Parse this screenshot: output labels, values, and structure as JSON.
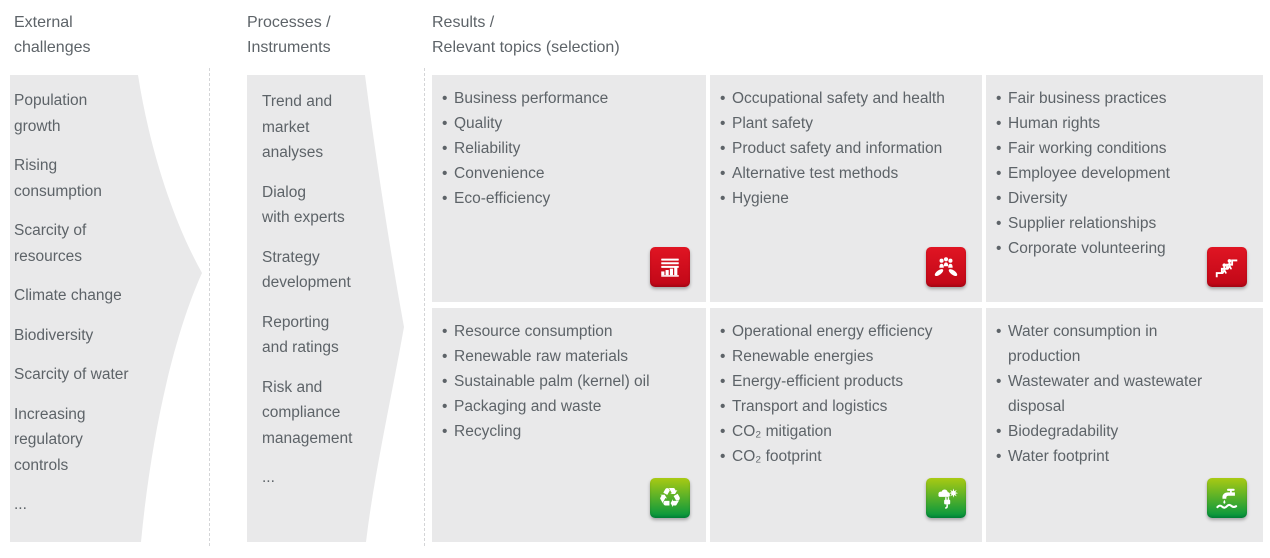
{
  "headers": {
    "external": "External\nchallenges",
    "processes": "Processes /\nInstruments",
    "results": "Results /\nRelevant topics (selection)"
  },
  "external_challenges": {
    "items": [
      "Population\ngrowth",
      "Rising\nconsumption",
      "Scarcity of\nresources",
      "Climate change",
      "Biodiversity",
      "Scarcity of water",
      "Increasing\nregulatory\ncontrols",
      "..."
    ]
  },
  "processes_instruments": {
    "items": [
      "Trend and\nmarket\nanalyses",
      "Dialog\nwith experts",
      "Strategy\ndevelopment",
      "Reporting\nand ratings",
      "Risk and\ncompliance\nmanagement",
      "..."
    ]
  },
  "boxes": [
    {
      "id": "products-performance",
      "icon": "bar-chart-icon",
      "color": "red",
      "items": [
        "Business performance",
        "Quality",
        "Reliability",
        "Convenience",
        "Eco-efficiency"
      ]
    },
    {
      "id": "safety-health",
      "icon": "hands-holding-people-icon",
      "color": "red",
      "items": [
        "Occupational safety and health",
        "Plant safety",
        "Product safety and information",
        "Alternative test methods",
        "Hygiene"
      ]
    },
    {
      "id": "social-fairness",
      "icon": "people-ascending-stairs-icon",
      "color": "red",
      "items": [
        "Fair business practices",
        "Human rights",
        "Fair working conditions",
        "Employee development",
        "Diversity",
        "Supplier relationships",
        "Corporate volunteering"
      ]
    },
    {
      "id": "materials-resources",
      "icon": "recycling-icon",
      "color": "green",
      "items": [
        "Resource consumption",
        "Renewable raw materials",
        "Sustainable palm (kernel) oil",
        "Packaging and waste",
        "Recycling"
      ]
    },
    {
      "id": "energy-climate",
      "icon": "energy-climate-icon",
      "color": "green",
      "items": [
        "Operational energy efficiency",
        "Renewable energies",
        "Energy-efficient products",
        "Transport and logistics",
        "CO₂ mitigation",
        "CO₂ footprint"
      ]
    },
    {
      "id": "water-wastewater",
      "icon": "water-tap-icon",
      "color": "green",
      "items": [
        "Water consumption in\nproduction",
        "Wastewater and wastewater\ndisposal",
        "Biodegradability",
        "Water footprint"
      ]
    }
  ],
  "icons": {
    "recycling_glyph": "♻"
  },
  "colors": {
    "panel-gray": "#e9e9ea",
    "text-gray": "#5d6368",
    "accent-red-top": "#e01523",
    "accent-red-bottom": "#c00717",
    "accent-green-top": "#a9ca13",
    "accent-green-bottom": "#009540"
  }
}
